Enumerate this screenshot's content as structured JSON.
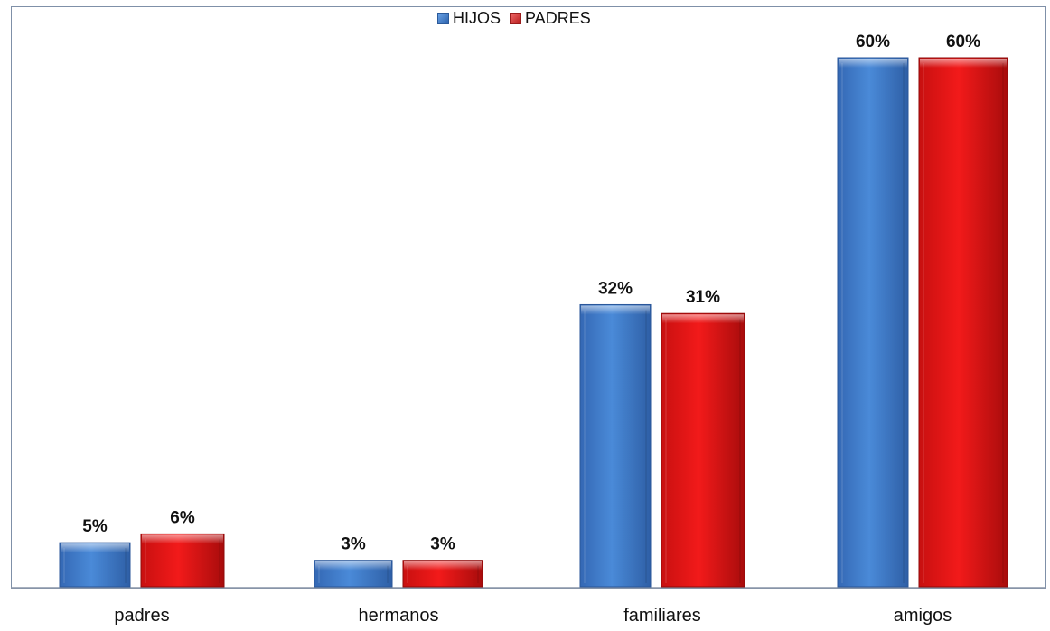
{
  "chart_data": {
    "type": "bar",
    "categories": [
      "padres",
      "hermanos",
      "familiares",
      "amigos"
    ],
    "series": [
      {
        "name": "HIJOS",
        "values": [
          5,
          3,
          32,
          60
        ],
        "labels": [
          "5%",
          "3%",
          "32%",
          "60%"
        ],
        "color": "#3f7fd0"
      },
      {
        "name": "PADRES",
        "values": [
          6,
          3,
          31,
          60
        ],
        "labels": [
          "6%",
          "3%",
          "31%",
          "60%"
        ],
        "color": "#e01818"
      }
    ],
    "title": "",
    "xlabel": "",
    "ylabel": "",
    "ylim": [
      0,
      60
    ],
    "grid": false,
    "legend": "top-center"
  }
}
